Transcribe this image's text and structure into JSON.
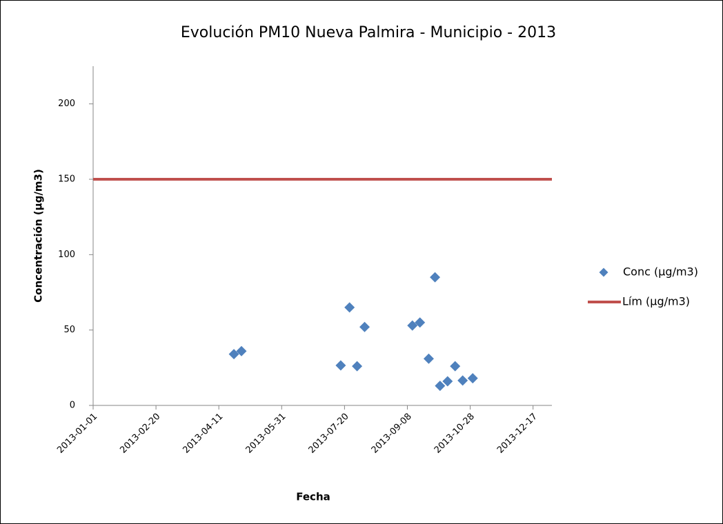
{
  "chart_data": {
    "type": "scatter",
    "title": "Evolución PM10 Nueva Palmira - Municipio - 2013",
    "x_label": "Fecha",
    "y_label": "Concentración (µg/m3)",
    "xlim": [
      "2013-01-01",
      "2014-01-01"
    ],
    "xticks": [
      "2013-01-01",
      "2013-02-20",
      "2013-04-11",
      "2013-05-31",
      "2013-07-20",
      "2013-09-08",
      "2013-10-28",
      "2013-12-17"
    ],
    "ylim": [
      0,
      225
    ],
    "yticks": [
      0,
      50,
      100,
      150,
      200
    ],
    "legend": "right",
    "series": [
      {
        "name": "Conc (µg/m3)",
        "color": "#4f81bd",
        "marker": "diamond",
        "x": [
          "2013-04-23",
          "2013-04-29",
          "2013-07-17",
          "2013-07-24",
          "2013-07-30",
          "2013-08-05",
          "2013-09-12",
          "2013-09-18",
          "2013-09-25",
          "2013-09-30",
          "2013-10-04",
          "2013-10-10",
          "2013-10-16",
          "2013-10-22",
          "2013-10-30"
        ],
        "values": [
          34,
          36,
          26.5,
          65,
          26,
          52,
          53,
          55,
          31,
          85,
          13,
          16,
          26,
          16.5,
          18
        ]
      },
      {
        "name": "Lím (µg/m3)",
        "color": "#c0504d",
        "marker": "line",
        "x": [
          "2013-01-01",
          "2014-01-01"
        ],
        "values": [
          150,
          150
        ]
      }
    ]
  }
}
